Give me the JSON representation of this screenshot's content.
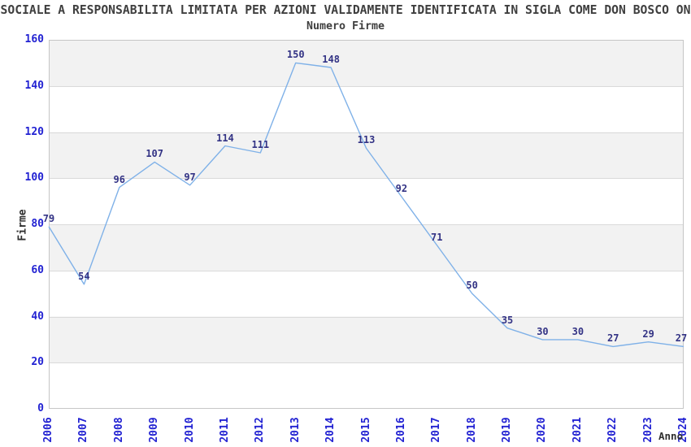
{
  "chart_data": {
    "type": "line",
    "title": "SOCIALE A RESPONSABILITA LIMITATA PER AZIONI VALIDAMENTE IDENTIFICATA IN SIGLA COME DON BOSCO ON",
    "subtitle": "Numero Firme",
    "xlabel": "Anno",
    "ylabel": "Firme",
    "categories": [
      "2006",
      "2007",
      "2008",
      "2009",
      "2010",
      "2011",
      "2012",
      "2013",
      "2014",
      "2015",
      "2016",
      "2017",
      "2018",
      "2019",
      "2020",
      "2021",
      "2022",
      "2023",
      "2024"
    ],
    "values": [
      79,
      54,
      96,
      107,
      97,
      114,
      111,
      150,
      148,
      113,
      92,
      71,
      50,
      35,
      30,
      30,
      27,
      29,
      27
    ],
    "ylim": [
      0,
      160
    ],
    "ytick_step": 20,
    "yticks": [
      0,
      20,
      40,
      60,
      80,
      100,
      120,
      140,
      160
    ],
    "grid": true,
    "legend": false,
    "point_labels_visible": true,
    "colors": {
      "line": "#7fb1e8",
      "tick_labels": "#2222d2",
      "point_labels": "#333385",
      "band": "#f2f2f2",
      "grid_line": "#dadada",
      "plot_border": "#c6c6c6",
      "text": "#3f3f3f"
    }
  }
}
